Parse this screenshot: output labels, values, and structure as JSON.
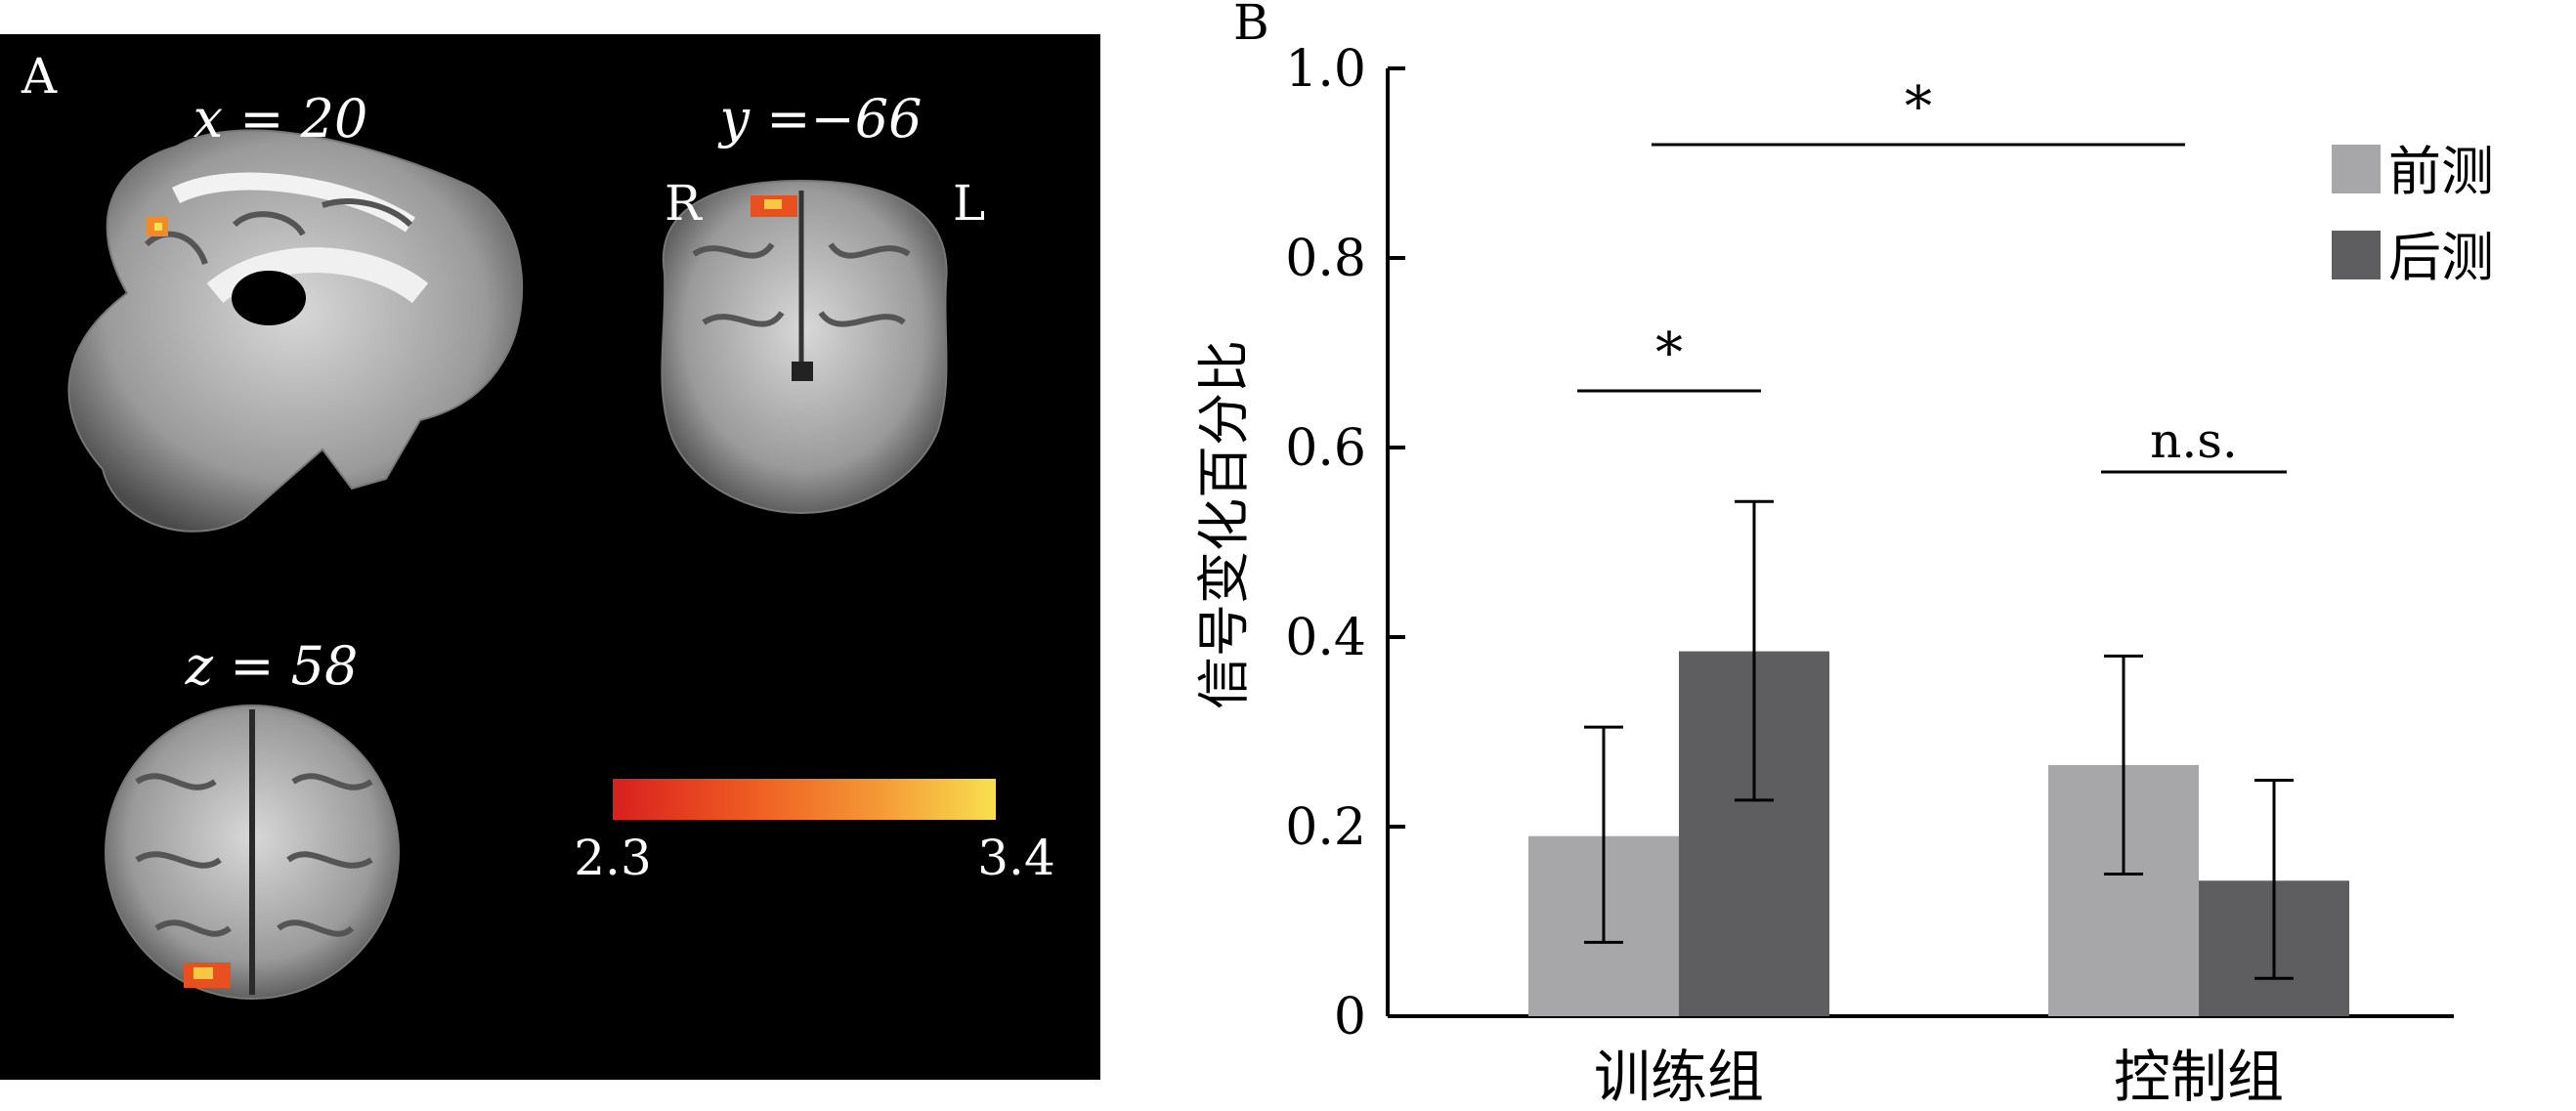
{
  "panel_a": {
    "letter": "A",
    "sagittal_label": "x = 20",
    "coronal_label": "y =−66",
    "coronal_right": "R",
    "coronal_left": "L",
    "axial_label": "z = 58",
    "colorbar_min": "2.3",
    "colorbar_max": "3.4",
    "colorbar_colors": [
      "#d81f1f",
      "#ee5a22",
      "#f59a36",
      "#f8e04f"
    ]
  },
  "chart_data": {
    "type": "bar",
    "panel_letter": "B",
    "title": "",
    "ylabel": "信号变化百分比",
    "xlabel": "",
    "ylim": [
      0,
      1.0
    ],
    "yticks": [
      0,
      0.2,
      0.4,
      0.6,
      0.8,
      1.0
    ],
    "ytick_labels": [
      "0",
      "0.2",
      "0.4",
      "0.6",
      "0.8",
      "1.0"
    ],
    "categories": [
      "训练组",
      "控制组"
    ],
    "series": [
      {
        "name": "前测",
        "color": "#a7a7aa",
        "values": [
          0.19,
          0.265
        ],
        "error_low": [
          0.078,
          0.15
        ],
        "error_high": [
          0.305,
          0.38
        ]
      },
      {
        "name": "后测",
        "color": "#5e5d60",
        "values": [
          0.385,
          0.143
        ],
        "error_low": [
          0.228,
          0.04
        ],
        "error_high": [
          0.543,
          0.249
        ]
      }
    ],
    "legend_position": "top-right",
    "annotations": [
      {
        "text": "*",
        "between": "训练组 前测 – 训练组 后测"
      },
      {
        "text": "n.s.",
        "between": "控制组 前测 – 控制组 后测"
      },
      {
        "text": "*",
        "between": "训练组 – 控制组"
      }
    ]
  }
}
